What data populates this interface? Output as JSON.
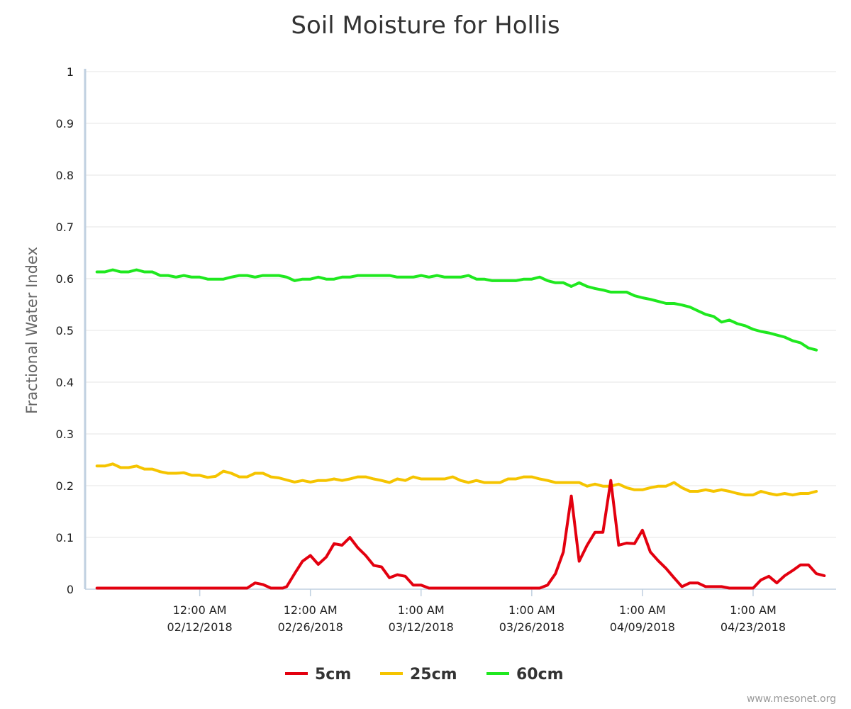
{
  "chart_data": {
    "type": "line",
    "title": "Soil Moisture for Hollis",
    "ylabel": "Fractional Water Index",
    "xlabel": "",
    "ylim": [
      0,
      1
    ],
    "yticks": [
      "0",
      "0.1",
      "0.2",
      "0.3",
      "0.4",
      "0.5",
      "0.6",
      "0.7",
      "0.8",
      "0.9",
      "1"
    ],
    "xlim": [
      "01/29/2018",
      "05/04/2018"
    ],
    "xticks": [
      {
        "time": "12:00 AM",
        "date": "02/12/2018",
        "day": 14
      },
      {
        "time": "12:00 AM",
        "date": "02/26/2018",
        "day": 28
      },
      {
        "time": "1:00 AM",
        "date": "03/12/2018",
        "day": 42
      },
      {
        "time": "1:00 AM",
        "date": "03/26/2018",
        "day": 56
      },
      {
        "time": "1:00 AM",
        "date": "04/09/2018",
        "day": 70
      },
      {
        "time": "1:00 AM",
        "date": "04/23/2018",
        "day": 84
      }
    ],
    "grid": true,
    "legend_position": "bottom",
    "series": [
      {
        "name": "5cm",
        "color": "#e3000f",
        "points": [
          [
            1,
            0.002
          ],
          [
            20,
            0.002
          ],
          [
            21,
            0.012
          ],
          [
            22,
            0.009
          ],
          [
            23,
            0.002
          ],
          [
            24.5,
            0.002
          ],
          [
            25,
            0.005
          ],
          [
            26,
            0.03
          ],
          [
            27,
            0.054
          ],
          [
            28,
            0.065
          ],
          [
            29,
            0.048
          ],
          [
            30,
            0.062
          ],
          [
            31,
            0.088
          ],
          [
            32,
            0.085
          ],
          [
            33,
            0.1
          ],
          [
            34,
            0.08
          ],
          [
            35,
            0.065
          ],
          [
            36,
            0.046
          ],
          [
            37,
            0.043
          ],
          [
            38,
            0.022
          ],
          [
            39,
            0.028
          ],
          [
            40,
            0.025
          ],
          [
            41,
            0.008
          ],
          [
            42,
            0.008
          ],
          [
            43,
            0.002
          ],
          [
            57,
            0.002
          ],
          [
            58,
            0.008
          ],
          [
            59,
            0.03
          ],
          [
            60,
            0.072
          ],
          [
            61,
            0.18
          ],
          [
            62,
            0.054
          ],
          [
            63,
            0.085
          ],
          [
            64,
            0.11
          ],
          [
            65,
            0.11
          ],
          [
            66,
            0.21
          ],
          [
            67,
            0.085
          ],
          [
            68,
            0.089
          ],
          [
            69,
            0.088
          ],
          [
            70,
            0.114
          ],
          [
            71,
            0.072
          ],
          [
            72,
            0.055
          ],
          [
            73,
            0.04
          ],
          [
            74,
            0.022
          ],
          [
            75,
            0.005
          ],
          [
            76,
            0.012
          ],
          [
            77,
            0.012
          ],
          [
            78,
            0.005
          ],
          [
            80,
            0.005
          ],
          [
            81,
            0.002
          ],
          [
            84,
            0.002
          ],
          [
            85,
            0.018
          ],
          [
            86,
            0.025
          ],
          [
            87,
            0.012
          ],
          [
            88,
            0.026
          ],
          [
            89,
            0.036
          ],
          [
            90,
            0.047
          ],
          [
            91,
            0.047
          ],
          [
            92,
            0.03
          ],
          [
            93,
            0.026
          ]
        ]
      },
      {
        "name": "25cm",
        "color": "#f5c400",
        "points": [
          [
            1,
            0.238
          ],
          [
            2,
            0.238
          ],
          [
            3,
            0.242
          ],
          [
            4,
            0.235
          ],
          [
            5,
            0.235
          ],
          [
            6,
            0.238
          ],
          [
            7,
            0.232
          ],
          [
            8,
            0.232
          ],
          [
            9,
            0.227
          ],
          [
            10,
            0.224
          ],
          [
            11,
            0.224
          ],
          [
            12,
            0.225
          ],
          [
            13,
            0.22
          ],
          [
            14,
            0.22
          ],
          [
            15,
            0.216
          ],
          [
            16,
            0.218
          ],
          [
            17,
            0.228
          ],
          [
            18,
            0.224
          ],
          [
            19,
            0.217
          ],
          [
            20,
            0.217
          ],
          [
            21,
            0.224
          ],
          [
            22,
            0.224
          ],
          [
            23,
            0.217
          ],
          [
            24,
            0.215
          ],
          [
            25,
            0.211
          ],
          [
            26,
            0.207
          ],
          [
            27,
            0.21
          ],
          [
            28,
            0.207
          ],
          [
            29,
            0.21
          ],
          [
            30,
            0.21
          ],
          [
            31,
            0.213
          ],
          [
            32,
            0.21
          ],
          [
            33,
            0.213
          ],
          [
            34,
            0.217
          ],
          [
            35,
            0.217
          ],
          [
            36,
            0.213
          ],
          [
            37,
            0.21
          ],
          [
            38,
            0.206
          ],
          [
            39,
            0.213
          ],
          [
            40,
            0.21
          ],
          [
            41,
            0.217
          ],
          [
            42,
            0.213
          ],
          [
            43,
            0.213
          ],
          [
            44,
            0.213
          ],
          [
            45,
            0.213
          ],
          [
            46,
            0.217
          ],
          [
            47,
            0.21
          ],
          [
            48,
            0.206
          ],
          [
            49,
            0.21
          ],
          [
            50,
            0.206
          ],
          [
            51,
            0.206
          ],
          [
            52,
            0.206
          ],
          [
            53,
            0.213
          ],
          [
            54,
            0.213
          ],
          [
            55,
            0.217
          ],
          [
            56,
            0.217
          ],
          [
            57,
            0.213
          ],
          [
            58,
            0.21
          ],
          [
            59,
            0.206
          ],
          [
            60,
            0.206
          ],
          [
            61,
            0.206
          ],
          [
            62,
            0.206
          ],
          [
            63,
            0.199
          ],
          [
            64,
            0.203
          ],
          [
            65,
            0.199
          ],
          [
            66,
            0.199
          ],
          [
            67,
            0.203
          ],
          [
            68,
            0.196
          ],
          [
            69,
            0.192
          ],
          [
            70,
            0.192
          ],
          [
            71,
            0.196
          ],
          [
            72,
            0.199
          ],
          [
            73,
            0.199
          ],
          [
            74,
            0.206
          ],
          [
            75,
            0.196
          ],
          [
            76,
            0.189
          ],
          [
            77,
            0.189
          ],
          [
            78,
            0.192
          ],
          [
            79,
            0.189
          ],
          [
            80,
            0.192
          ],
          [
            81,
            0.189
          ],
          [
            82,
            0.185
          ],
          [
            83,
            0.182
          ],
          [
            84,
            0.182
          ],
          [
            85,
            0.189
          ],
          [
            86,
            0.185
          ],
          [
            87,
            0.182
          ],
          [
            88,
            0.185
          ],
          [
            89,
            0.182
          ],
          [
            90,
            0.185
          ],
          [
            91,
            0.185
          ],
          [
            92,
            0.189
          ]
        ]
      },
      {
        "name": "60cm",
        "color": "#1fe81f",
        "points": [
          [
            1,
            0.613
          ],
          [
            2,
            0.613
          ],
          [
            3,
            0.617
          ],
          [
            4,
            0.613
          ],
          [
            5,
            0.613
          ],
          [
            6,
            0.617
          ],
          [
            7,
            0.613
          ],
          [
            8,
            0.613
          ],
          [
            9,
            0.606
          ],
          [
            10,
            0.606
          ],
          [
            11,
            0.603
          ],
          [
            12,
            0.606
          ],
          [
            13,
            0.603
          ],
          [
            14,
            0.603
          ],
          [
            15,
            0.599
          ],
          [
            16,
            0.599
          ],
          [
            17,
            0.599
          ],
          [
            18,
            0.603
          ],
          [
            19,
            0.606
          ],
          [
            20,
            0.606
          ],
          [
            21,
            0.603
          ],
          [
            22,
            0.606
          ],
          [
            23,
            0.606
          ],
          [
            24,
            0.606
          ],
          [
            25,
            0.603
          ],
          [
            26,
            0.596
          ],
          [
            27,
            0.599
          ],
          [
            28,
            0.599
          ],
          [
            29,
            0.603
          ],
          [
            30,
            0.599
          ],
          [
            31,
            0.599
          ],
          [
            32,
            0.603
          ],
          [
            33,
            0.603
          ],
          [
            34,
            0.606
          ],
          [
            35,
            0.606
          ],
          [
            36,
            0.606
          ],
          [
            37,
            0.606
          ],
          [
            38,
            0.606
          ],
          [
            39,
            0.603
          ],
          [
            40,
            0.603
          ],
          [
            41,
            0.603
          ],
          [
            42,
            0.606
          ],
          [
            43,
            0.603
          ],
          [
            44,
            0.606
          ],
          [
            45,
            0.603
          ],
          [
            46,
            0.603
          ],
          [
            47,
            0.603
          ],
          [
            48,
            0.606
          ],
          [
            49,
            0.599
          ],
          [
            50,
            0.599
          ],
          [
            51,
            0.596
          ],
          [
            52,
            0.596
          ],
          [
            53,
            0.596
          ],
          [
            54,
            0.596
          ],
          [
            55,
            0.599
          ],
          [
            56,
            0.599
          ],
          [
            57,
            0.603
          ],
          [
            58,
            0.596
          ],
          [
            59,
            0.592
          ],
          [
            60,
            0.592
          ],
          [
            61,
            0.585
          ],
          [
            62,
            0.592
          ],
          [
            63,
            0.585
          ],
          [
            64,
            0.581
          ],
          [
            65,
            0.578
          ],
          [
            66,
            0.574
          ],
          [
            67,
            0.574
          ],
          [
            68,
            0.574
          ],
          [
            69,
            0.567
          ],
          [
            70,
            0.563
          ],
          [
            71,
            0.56
          ],
          [
            72,
            0.556
          ],
          [
            73,
            0.552
          ],
          [
            74,
            0.552
          ],
          [
            75,
            0.549
          ],
          [
            76,
            0.545
          ],
          [
            77,
            0.538
          ],
          [
            78,
            0.531
          ],
          [
            79,
            0.527
          ],
          [
            80,
            0.516
          ],
          [
            81,
            0.52
          ],
          [
            82,
            0.513
          ],
          [
            83,
            0.509
          ],
          [
            84,
            0.502
          ],
          [
            85,
            0.498
          ],
          [
            86,
            0.495
          ],
          [
            87,
            0.491
          ],
          [
            88,
            0.487
          ],
          [
            89,
            0.48
          ],
          [
            90,
            0.476
          ],
          [
            91,
            0.466
          ],
          [
            92,
            0.462
          ]
        ]
      }
    ]
  },
  "credit": "www.mesonet.org"
}
